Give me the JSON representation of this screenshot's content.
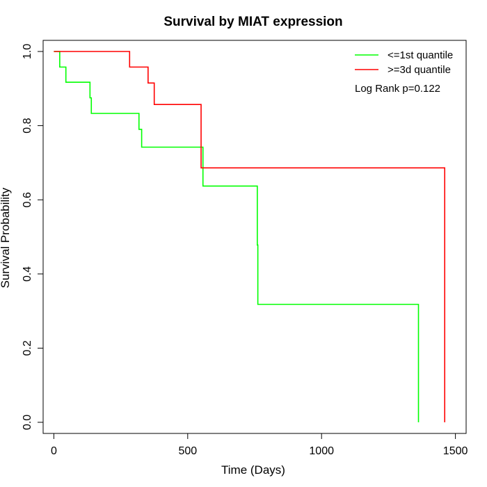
{
  "chart_data": {
    "type": "line",
    "title": "Survival by MIAT expression",
    "xlabel": "Time (Days)",
    "ylabel": "Survival Probability",
    "xlim": [
      -40,
      1540
    ],
    "ylim": [
      -0.03,
      1.03
    ],
    "xticks": [
      0,
      500,
      1000,
      1500
    ],
    "yticks": [
      0.0,
      0.2,
      0.4,
      0.6,
      0.8,
      1.0
    ],
    "xtick_labels": [
      "0",
      "500",
      "1000",
      "1500"
    ],
    "ytick_labels": [
      "0.0",
      "0.2",
      "0.4",
      "0.6",
      "0.8",
      "1.0"
    ],
    "grid": false,
    "legend_position": "top-right",
    "annotation": "Log Rank p=0.122",
    "series": [
      {
        "name": "<=1st quantile",
        "color": "#00ff00",
        "x": [
          0,
          22,
          45,
          135,
          140,
          318,
          328,
          553,
          557,
          760,
          762,
          1362,
          1362
        ],
        "y": [
          1.0,
          0.958,
          0.917,
          0.875,
          0.833,
          0.79,
          0.742,
          0.742,
          0.637,
          0.478,
          0.318,
          0.318,
          0.0
        ]
      },
      {
        "name": ">=3d quantile",
        "color": "#ff0000",
        "x": [
          0,
          283,
          352,
          375,
          550,
          1460,
          1460
        ],
        "y": [
          1.0,
          0.958,
          0.915,
          0.857,
          0.686,
          0.686,
          0.0
        ]
      }
    ]
  }
}
